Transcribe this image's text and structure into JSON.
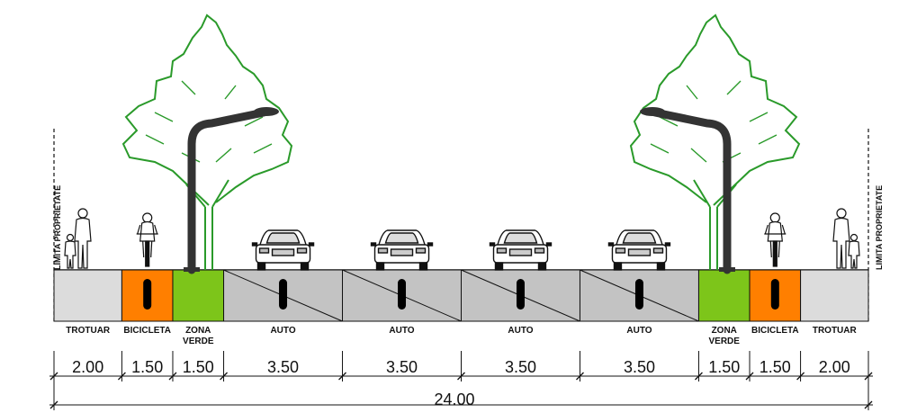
{
  "colors": {
    "sidewalk": "#dcdcdc",
    "bike": "#ff7f00",
    "green": "#7dc51a",
    "road": "#c3c3c3",
    "tree": "#2a9a2a",
    "pole": "#333333",
    "marker": "#000000"
  },
  "property_label": "LIMITA PROPRIETATE",
  "total_width": "24.00",
  "lanes": [
    {
      "type": "sidewalk",
      "label_lines": [
        "TROTUAR"
      ],
      "width": "2.00"
    },
    {
      "type": "bike",
      "label_lines": [
        "BICICLETA"
      ],
      "width": "1.50"
    },
    {
      "type": "green",
      "label_lines": [
        "ZONA",
        "VERDE"
      ],
      "width": "1.50"
    },
    {
      "type": "road",
      "label_lines": [
        "AUTO"
      ],
      "width": "3.50"
    },
    {
      "type": "road",
      "label_lines": [
        "AUTO"
      ],
      "width": "3.50"
    },
    {
      "type": "road",
      "label_lines": [
        "AUTO"
      ],
      "width": "3.50"
    },
    {
      "type": "road",
      "label_lines": [
        "AUTO"
      ],
      "width": "3.50"
    },
    {
      "type": "green",
      "label_lines": [
        "ZONA",
        "VERDE"
      ],
      "width": "1.50"
    },
    {
      "type": "bike",
      "label_lines": [
        "BICICLETA"
      ],
      "width": "1.50"
    },
    {
      "type": "sidewalk",
      "label_lines": [
        "TROTUAR"
      ],
      "width": "2.00"
    }
  ],
  "icons": [
    "pedestrian-icon",
    "cyclist-icon",
    "tree-icon",
    "street-lamp-icon",
    "car-icon"
  ]
}
